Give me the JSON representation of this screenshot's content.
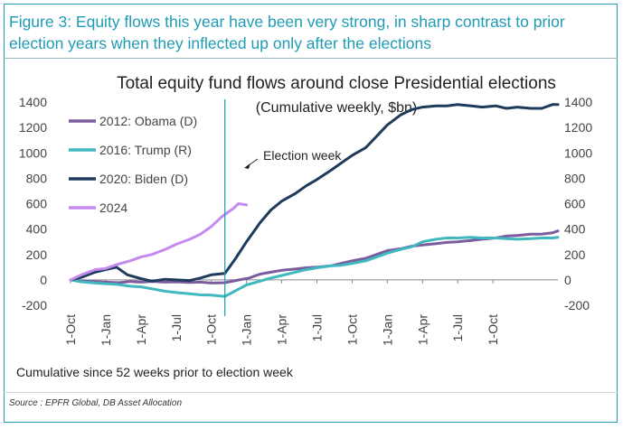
{
  "figure": {
    "caption": "Figure 3: Equity flows this year have been very strong, in sharp contrast to prior election years when they inflected up only after the elections",
    "note": "Cumulative since 52 weeks prior to election week",
    "source": "Source : EPFR Global, DB Asset Allocation"
  },
  "chart_data": {
    "type": "line",
    "title": "Total equity fund flows around close Presidential elections",
    "subtitle": "(Cumulative weekly, $bn)",
    "xlabel": "",
    "ylabel": "",
    "ylim": [
      -200,
      1400
    ],
    "yticks": [
      -200,
      0,
      200,
      400,
      600,
      800,
      1000,
      1200,
      1400
    ],
    "dual_y_axis": true,
    "x_tick_labels": [
      "1-Oct",
      "1-Jan",
      "1-Apr",
      "1-Jul",
      "1-Oct",
      "1-Jan",
      "1-Apr",
      "1-Jul",
      "1-Oct",
      "1-Jan",
      "1-Apr",
      "1-Jul",
      "1-Oct"
    ],
    "x_unit": "weeks relative to 1-Oct of the year before the election (0 = 1-Oct)",
    "grid": false,
    "legend_position": "top-left",
    "annotation": {
      "text": "Election week",
      "x": 57
    },
    "series": [
      {
        "name": "2012: Obama (D)",
        "color": "#7b5c9e",
        "points": [
          [
            0,
            0
          ],
          [
            4,
            -8
          ],
          [
            8,
            -12
          ],
          [
            13,
            -18
          ],
          [
            18,
            -22
          ],
          [
            22,
            -12
          ],
          [
            26,
            -18
          ],
          [
            30,
            -12
          ],
          [
            35,
            -18
          ],
          [
            39,
            -15
          ],
          [
            44,
            -20
          ],
          [
            48,
            -18
          ],
          [
            52,
            -25
          ],
          [
            57,
            -22
          ],
          [
            61,
            -5
          ],
          [
            66,
            15
          ],
          [
            70,
            45
          ],
          [
            74,
            60
          ],
          [
            78,
            75
          ],
          [
            83,
            85
          ],
          [
            87,
            95
          ],
          [
            91,
            100
          ],
          [
            96,
            110
          ],
          [
            100,
            130
          ],
          [
            104,
            150
          ],
          [
            109,
            170
          ],
          [
            113,
            200
          ],
          [
            117,
            230
          ],
          [
            122,
            245
          ],
          [
            126,
            265
          ],
          [
            130,
            275
          ],
          [
            135,
            285
          ],
          [
            139,
            295
          ],
          [
            143,
            300
          ],
          [
            148,
            310
          ],
          [
            152,
            320
          ],
          [
            157,
            330
          ],
          [
            161,
            345
          ],
          [
            165,
            350
          ],
          [
            170,
            360
          ],
          [
            174,
            360
          ],
          [
            178,
            370
          ],
          [
            180,
            385
          ]
        ]
      },
      {
        "name": "2016: Trump (R)",
        "color": "#3fb8bf",
        "points": [
          [
            0,
            0
          ],
          [
            4,
            -15
          ],
          [
            9,
            -25
          ],
          [
            13,
            -30
          ],
          [
            17,
            -35
          ],
          [
            22,
            -50
          ],
          [
            26,
            -55
          ],
          [
            30,
            -70
          ],
          [
            35,
            -90
          ],
          [
            39,
            -100
          ],
          [
            44,
            -110
          ],
          [
            48,
            -118
          ],
          [
            52,
            -120
          ],
          [
            57,
            -130
          ],
          [
            61,
            -85
          ],
          [
            65,
            -40
          ],
          [
            70,
            -10
          ],
          [
            74,
            15
          ],
          [
            78,
            35
          ],
          [
            83,
            60
          ],
          [
            87,
            80
          ],
          [
            91,
            95
          ],
          [
            96,
            110
          ],
          [
            100,
            115
          ],
          [
            104,
            130
          ],
          [
            109,
            150
          ],
          [
            113,
            180
          ],
          [
            117,
            210
          ],
          [
            122,
            240
          ],
          [
            126,
            260
          ],
          [
            130,
            300
          ],
          [
            135,
            320
          ],
          [
            139,
            330
          ],
          [
            143,
            330
          ],
          [
            148,
            335
          ],
          [
            152,
            330
          ],
          [
            157,
            330
          ],
          [
            161,
            325
          ],
          [
            165,
            320
          ],
          [
            170,
            325
          ],
          [
            174,
            330
          ],
          [
            178,
            330
          ],
          [
            180,
            335
          ]
        ]
      },
      {
        "name": "2020: Biden (D)",
        "color": "#1f3b5c",
        "points": [
          [
            0,
            0
          ],
          [
            4,
            20
          ],
          [
            9,
            60
          ],
          [
            13,
            80
          ],
          [
            17,
            100
          ],
          [
            21,
            40
          ],
          [
            26,
            10
          ],
          [
            30,
            -10
          ],
          [
            35,
            5
          ],
          [
            39,
            0
          ],
          [
            44,
            -5
          ],
          [
            48,
            15
          ],
          [
            52,
            40
          ],
          [
            57,
            50
          ],
          [
            61,
            170
          ],
          [
            65,
            300
          ],
          [
            70,
            450
          ],
          [
            74,
            550
          ],
          [
            78,
            620
          ],
          [
            83,
            680
          ],
          [
            87,
            740
          ],
          [
            91,
            790
          ],
          [
            96,
            860
          ],
          [
            100,
            920
          ],
          [
            104,
            980
          ],
          [
            109,
            1040
          ],
          [
            113,
            1130
          ],
          [
            117,
            1220
          ],
          [
            122,
            1300
          ],
          [
            126,
            1340
          ],
          [
            130,
            1360
          ],
          [
            135,
            1370
          ],
          [
            139,
            1370
          ],
          [
            143,
            1380
          ],
          [
            148,
            1370
          ],
          [
            152,
            1360
          ],
          [
            157,
            1370
          ],
          [
            161,
            1350
          ],
          [
            165,
            1360
          ],
          [
            170,
            1350
          ],
          [
            174,
            1350
          ],
          [
            178,
            1380
          ],
          [
            180,
            1380
          ]
        ]
      },
      {
        "name": "2024",
        "color": "#c58af0",
        "points": [
          [
            0,
            0
          ],
          [
            4,
            40
          ],
          [
            9,
            80
          ],
          [
            13,
            90
          ],
          [
            17,
            120
          ],
          [
            22,
            150
          ],
          [
            26,
            180
          ],
          [
            30,
            200
          ],
          [
            35,
            240
          ],
          [
            39,
            280
          ],
          [
            44,
            320
          ],
          [
            48,
            360
          ],
          [
            52,
            420
          ],
          [
            56,
            500
          ],
          [
            60,
            560
          ],
          [
            62,
            600
          ],
          [
            65,
            590
          ]
        ]
      }
    ]
  }
}
